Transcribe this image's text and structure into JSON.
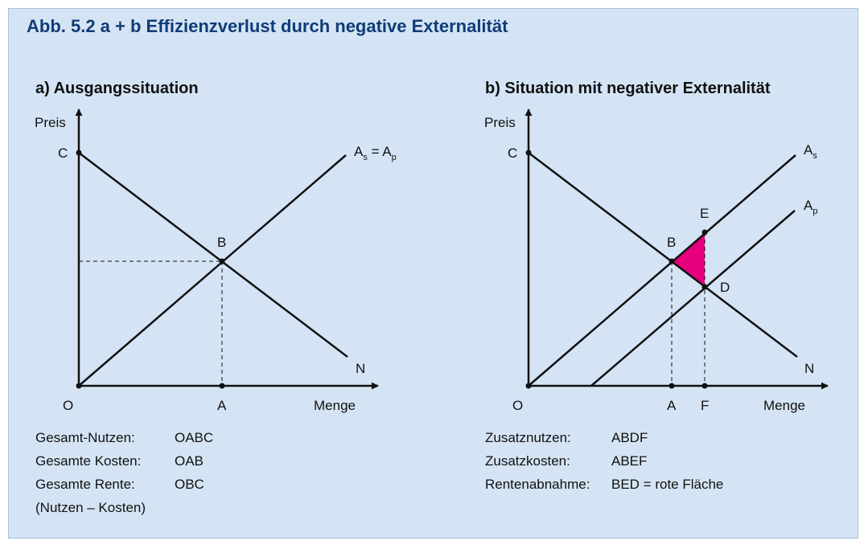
{
  "title": "Abb. 5.2 a + b  Effizienzverlust durch negative Externalität",
  "colors": {
    "background": "#d5e4f4",
    "title": "#0f3c78",
    "highlight": "#e6007e"
  },
  "panel_a": {
    "heading": "a) Ausgangssituation",
    "y_axis_label": "Preis",
    "x_axis_label": "Menge",
    "points": {
      "O": "O",
      "A": "A",
      "B": "B",
      "C": "C",
      "N": "N"
    },
    "curve_label": {
      "main": "A",
      "sub1": "s",
      "eq": " = ",
      "sub2": "p"
    },
    "legend": [
      {
        "key": "Gesamt-Nutzen:",
        "value": "OABC"
      },
      {
        "key": "Gesamte Kosten:",
        "value": "OAB"
      },
      {
        "key": "Gesamte Rente:",
        "value": "OBC"
      },
      {
        "key": "(Nutzen – Kosten)",
        "value": ""
      }
    ]
  },
  "panel_b": {
    "heading": "b) Situation mit negativer Externalität",
    "y_axis_label": "Preis",
    "x_axis_label": "Menge",
    "points": {
      "O": "O",
      "A": "A",
      "F": "F",
      "B": "B",
      "C": "C",
      "D": "D",
      "E": "E",
      "N": "N"
    },
    "curve_label_social": {
      "main": "A",
      "sub": "s"
    },
    "curve_label_private": {
      "main": "A",
      "sub": "p"
    },
    "legend": [
      {
        "key": "Zusatznutzen:",
        "value": "ABDF"
      },
      {
        "key": "Zusatzkosten:",
        "value": "ABEF"
      },
      {
        "key": "Rentenabnahme:",
        "value": "BED = rote Fläche"
      }
    ]
  }
}
